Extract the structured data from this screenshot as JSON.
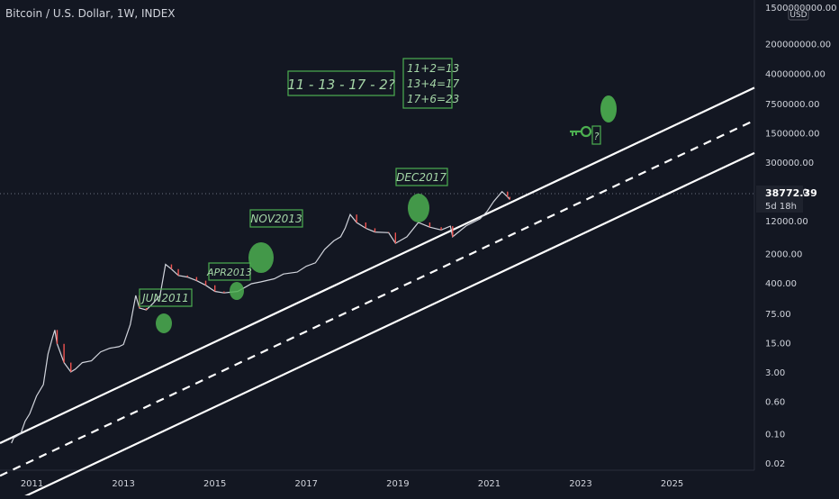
{
  "header": {
    "title": "Bitcoin / U.S. Dollar, 1W, INDEX"
  },
  "price_axis": {
    "currency": "USD",
    "current_price": "38772.39",
    "countdown": "5d 18h"
  },
  "colors": {
    "background": "#131722",
    "price_line": "#d1d4dc",
    "candle_down": "#ef5350",
    "channel": "#ffffff",
    "annotation_green": "#4caf50",
    "annotation_text": "#a5d6a7",
    "axis_text": "#d1d4dc"
  },
  "annotations": {
    "sequence": "11 - 13 - 17 - 2?",
    "equations": [
      "11+2=13",
      "13+4=17",
      "17+6=23"
    ],
    "question_mark": "?",
    "tops": [
      "JUN2011",
      "APR2013",
      "NOV2013",
      "DEC2017"
    ],
    "key_icon": "key-icon"
  },
  "chart_data": {
    "type": "line",
    "title": "Bitcoin / U.S. Dollar, 1W, INDEX",
    "xlabel": "",
    "ylabel": "",
    "y_scale": "log",
    "x_ticks": [
      "2011",
      "2013",
      "2015",
      "2017",
      "2019",
      "2021",
      "2023",
      "2025"
    ],
    "y_ticks": [
      "1500000000.00",
      "200000000.00",
      "40000000.00",
      "7500000.00",
      "1500000.00",
      "300000.00",
      "60000.00",
      "12000.00",
      "2000.00",
      "400.00",
      "75.00",
      "15.00",
      "3.00",
      "0.60",
      "0.10",
      "0.02"
    ],
    "ylim": [
      0.015,
      1500000000
    ],
    "xlim": [
      2010.3,
      2026.8
    ],
    "grid": false,
    "series": [
      {
        "x": [
          2010.55,
          2010.6,
          2010.75,
          2010.85,
          2010.95,
          2011.1,
          2011.25,
          2011.35,
          2011.45,
          2011.5,
          2011.55,
          2011.7,
          2011.85,
          2011.95,
          2012.1,
          2012.3,
          2012.5,
          2012.7,
          2012.9,
          2013.0,
          2013.15,
          2013.27,
          2013.35,
          2013.5,
          2013.65,
          2013.8,
          2013.92,
          2014.05,
          2014.2,
          2014.4,
          2014.6,
          2014.8,
          2015.0,
          2015.2,
          2015.5,
          2015.8,
          2016.0,
          2016.3,
          2016.5,
          2016.8,
          2017.0,
          2017.2,
          2017.4,
          2017.6,
          2017.75,
          2017.85,
          2017.96,
          2018.1,
          2018.3,
          2018.5,
          2018.8,
          2018.95,
          2019.2,
          2019.45,
          2019.7,
          2019.95,
          2020.15,
          2020.2,
          2020.5,
          2020.8,
          2020.95,
          2021.1,
          2021.28,
          2021.4,
          2021.45
        ],
        "y": [
          0.06,
          0.08,
          0.1,
          0.2,
          0.3,
          0.8,
          1.5,
          8,
          20,
          30,
          14,
          5,
          3,
          3.5,
          5,
          5.5,
          9,
          11,
          12,
          13.5,
          40,
          200,
          100,
          90,
          130,
          200,
          1100,
          850,
          600,
          550,
          450,
          350,
          250,
          230,
          250,
          380,
          420,
          500,
          650,
          720,
          1000,
          1200,
          2500,
          4000,
          5000,
          8000,
          17000,
          11000,
          8000,
          6500,
          6300,
          3500,
          5000,
          11000,
          8500,
          7300,
          9000,
          5000,
          9200,
          13500,
          20000,
          35000,
          60000,
          45000,
          38772
        ]
      }
    ],
    "channel_lines": [
      {
        "name": "",
        "style": "solid",
        "x": [
          2010.3,
          2026.8
        ],
        "y": [
          0.06,
          18000000
        ]
      },
      {
        "name": "",
        "style": "dashed",
        "x": [
          2010.3,
          2026.8
        ],
        "y": [
          0.01,
          3000000
        ]
      },
      {
        "name": "",
        "style": "solid",
        "x": [
          2010.3,
          2026.8
        ],
        "y": [
          0.0017,
          500000
        ]
      }
    ],
    "current_price": 38772.39
  }
}
